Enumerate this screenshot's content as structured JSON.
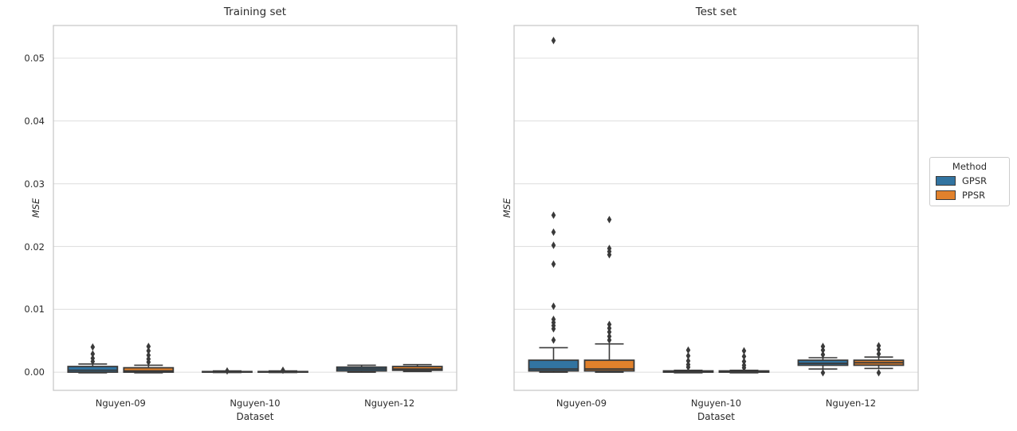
{
  "figure": {
    "background": "#ffffff",
    "text_color": "#2b2b2b",
    "grid_color": "#e0e0e0",
    "spine_color": "#c9c9c9",
    "box_edge_color": "#3a3a3a"
  },
  "legend": {
    "title": "Method",
    "entries": [
      {
        "label": "GPSR",
        "color": "#3274a1"
      },
      {
        "label": "PPSR",
        "color": "#e1812c"
      }
    ]
  },
  "chart_data": [
    {
      "type": "boxplot",
      "title": "Training set",
      "xlabel": "Dataset",
      "ylabel": "MSE",
      "categories": [
        "Nguyen-09",
        "Nguyen-10",
        "Nguyen-12"
      ],
      "ylim": [
        -0.0029,
        0.0552
      ],
      "yticks": [
        0,
        0.01,
        0.02,
        0.03,
        0.04,
        0.05
      ],
      "ytick_labels": [
        "0.00",
        "0.01",
        "0.02",
        "0.03",
        "0.04",
        "0.05"
      ],
      "ytick_labels_visible": true,
      "grid": true,
      "legend_visible": false,
      "series": [
        {
          "name": "GPSR",
          "color": "#3274a1",
          "boxes": [
            {
              "q1": 0.0,
              "median": 0.0003,
              "q3": 0.0009,
              "whisker_low": -0.0001,
              "whisker_high": 0.0013,
              "outliers": [
                0.0017,
                0.0022,
                0.0029,
                0.004
              ]
            },
            {
              "q1": 0.0,
              "median": 5e-05,
              "q3": 0.0001,
              "whisker_low": -5e-05,
              "whisker_high": 0.0002,
              "outliers": [
                0.0002
              ]
            },
            {
              "q1": 0.0002,
              "median": 0.0005,
              "q3": 0.0008,
              "whisker_low": 0.0,
              "whisker_high": 0.0011,
              "outliers": []
            }
          ]
        },
        {
          "name": "PPSR",
          "color": "#e1812c",
          "boxes": [
            {
              "q1": 0.0,
              "median": 0.0002,
              "q3": 0.0007,
              "whisker_low": -0.0001,
              "whisker_high": 0.0011,
              "outliers": [
                0.0016,
                0.0021,
                0.0027,
                0.0034,
                0.0041
              ]
            },
            {
              "q1": 0.0,
              "median": 5e-05,
              "q3": 0.0001,
              "whisker_low": -5e-05,
              "whisker_high": 0.0002,
              "outliers": [
                0.0003
              ]
            },
            {
              "q1": 0.0003,
              "median": 0.0005,
              "q3": 0.0009,
              "whisker_low": 0.0001,
              "whisker_high": 0.0012,
              "outliers": []
            }
          ]
        }
      ]
    },
    {
      "type": "boxplot",
      "title": "Test set",
      "xlabel": "Dataset",
      "ylabel": "MSE",
      "categories": [
        "Nguyen-09",
        "Nguyen-10",
        "Nguyen-12"
      ],
      "ylim": [
        -0.0029,
        0.0552
      ],
      "yticks": [
        0,
        0.01,
        0.02,
        0.03,
        0.04,
        0.05
      ],
      "ytick_labels": [
        "0.00",
        "0.01",
        "0.02",
        "0.03",
        "0.04",
        "0.05"
      ],
      "ytick_labels_visible": false,
      "grid": true,
      "legend_visible": true,
      "series": [
        {
          "name": "GPSR",
          "color": "#3274a1",
          "boxes": [
            {
              "q1": 0.0002,
              "median": 0.0005,
              "q3": 0.0019,
              "whisker_low": 0.0,
              "whisker_high": 0.0039,
              "outliers": [
                0.0051,
                0.0069,
                0.0074,
                0.0079,
                0.0084,
                0.0105,
                0.0172,
                0.0202,
                0.0223,
                0.025,
                0.0528
              ]
            },
            {
              "q1": 0.0,
              "median": 0.0001,
              "q3": 0.0002,
              "whisker_low": -0.0001,
              "whisker_high": 0.0003,
              "outliers": [
                0.0008,
                0.0012,
                0.0018,
                0.0026,
                0.0035
              ]
            },
            {
              "q1": 0.0011,
              "median": 0.0014,
              "q3": 0.0019,
              "whisker_low": 0.0005,
              "whisker_high": 0.0023,
              "outliers": [
                -0.0001,
                0.0028,
                0.0035,
                0.0041
              ]
            }
          ]
        },
        {
          "name": "PPSR",
          "color": "#e1812c",
          "boxes": [
            {
              "q1": 0.0002,
              "median": 0.0005,
              "q3": 0.0019,
              "whisker_low": 0.0,
              "whisker_high": 0.0045,
              "outliers": [
                0.0051,
                0.0057,
                0.0064,
                0.007,
                0.0076,
                0.0187,
                0.0192,
                0.0197,
                0.0243
              ]
            },
            {
              "q1": 0.0,
              "median": 0.0001,
              "q3": 0.0002,
              "whisker_low": -0.0001,
              "whisker_high": 0.0003,
              "outliers": [
                0.0007,
                0.0011,
                0.0017,
                0.0025,
                0.0034
              ]
            },
            {
              "q1": 0.0011,
              "median": 0.0015,
              "q3": 0.0019,
              "whisker_low": 0.0006,
              "whisker_high": 0.0024,
              "outliers": [
                -0.0001,
                0.0029,
                0.0036,
                0.0042
              ]
            }
          ]
        }
      ]
    }
  ]
}
